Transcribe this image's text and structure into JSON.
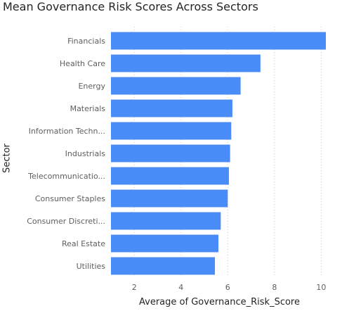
{
  "chart_data": {
    "type": "bar",
    "orientation": "horizontal",
    "title": "Mean Governance Risk Scores Across Sectors",
    "xlabel": "Average of Governance_Risk_Score",
    "ylabel": "Sector",
    "categories": [
      "Financials",
      "Health Care",
      "Energy",
      "Materials",
      "Information Techn...",
      "Industrials",
      "Telecommunicatio...",
      "Consumer Staples",
      "Consumer Discreti...",
      "Real Estate",
      "Utilities"
    ],
    "values": [
      10.2,
      7.4,
      6.55,
      6.2,
      6.15,
      6.1,
      6.05,
      6.0,
      5.7,
      5.6,
      5.45
    ],
    "xlim": [
      1,
      10.2
    ],
    "xticks": [
      2,
      4,
      6,
      8,
      10
    ],
    "grid": "vertical dotted",
    "bar_color": "#4a8cf7"
  }
}
